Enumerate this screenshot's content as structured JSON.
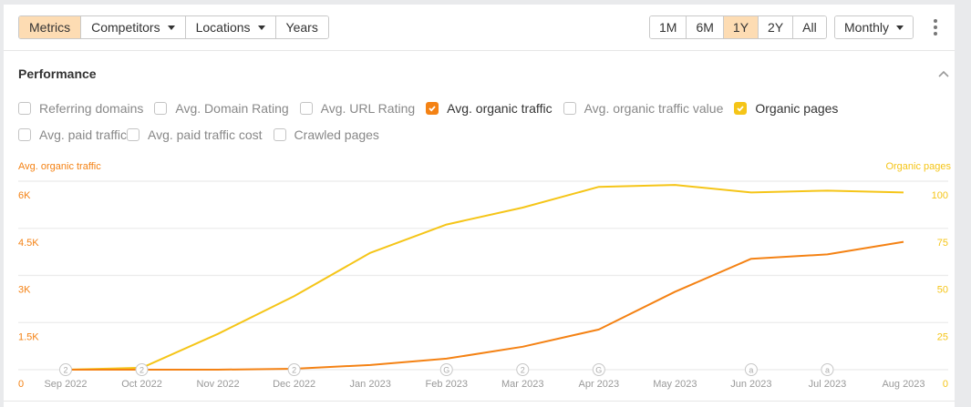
{
  "toolbar": {
    "left_buttons": [
      {
        "label": "Metrics",
        "active": true,
        "dropdown": false
      },
      {
        "label": "Competitors",
        "active": false,
        "dropdown": true
      },
      {
        "label": "Locations",
        "active": false,
        "dropdown": true
      },
      {
        "label": "Years",
        "active": false,
        "dropdown": false
      }
    ],
    "range_buttons": [
      {
        "label": "1M",
        "active": false
      },
      {
        "label": "6M",
        "active": false
      },
      {
        "label": "1Y",
        "active": true
      },
      {
        "label": "2Y",
        "active": false
      },
      {
        "label": "All",
        "active": false
      }
    ],
    "interval": {
      "label": "Monthly"
    },
    "more_icon": "kebab-menu-icon"
  },
  "section": {
    "title": "Performance",
    "collapse_icon": "chevron-up-icon"
  },
  "metrics": [
    {
      "label": "Referring domains",
      "checked": false,
      "color": ""
    },
    {
      "label": "Avg. Domain Rating",
      "checked": false,
      "color": ""
    },
    {
      "label": "Avg. URL Rating",
      "checked": false,
      "color": ""
    },
    {
      "label": "Avg. organic traffic",
      "checked": true,
      "color": "#f48214"
    },
    {
      "label": "Avg. organic traffic value",
      "checked": false,
      "color": ""
    },
    {
      "label": "Organic pages",
      "checked": true,
      "color": "#f5c518"
    },
    {
      "label": "Avg. paid traffic",
      "checked": false,
      "color": ""
    },
    {
      "label": "Avg. paid traffic cost",
      "checked": false,
      "color": ""
    },
    {
      "label": "Crawled pages",
      "checked": false,
      "color": ""
    }
  ],
  "colors": {
    "orange": "#f48214",
    "yellow": "#f5c518",
    "grid": "#ebebeb",
    "tick_text": "#999999",
    "active_button": "#fddcb3"
  },
  "chart_data": {
    "type": "line",
    "title": "Performance",
    "x": [
      "Sep 2022",
      "Oct 2022",
      "Nov 2022",
      "Dec 2022",
      "Jan 2023",
      "Feb 2023",
      "Mar 2023",
      "Apr 2023",
      "May 2023",
      "Jun 2023",
      "Jul 2023",
      "Aug 2023"
    ],
    "series": [
      {
        "name": "Avg. organic traffic",
        "axis": "left",
        "color": "#f48214",
        "values": [
          0,
          0,
          0,
          30,
          150,
          350,
          730,
          1280,
          2480,
          3530,
          3670,
          4070
        ]
      },
      {
        "name": "Organic pages",
        "axis": "right",
        "color": "#f5c518",
        "values": [
          0,
          1,
          19,
          39,
          62,
          77,
          86,
          97,
          98,
          94,
          95,
          94
        ]
      }
    ],
    "left_axis": {
      "label": "Avg. organic traffic",
      "ticks": [
        "0",
        "1.5K",
        "3K",
        "4.5K",
        "6K"
      ],
      "ylim": [
        0,
        6000
      ]
    },
    "right_axis": {
      "label": "Organic pages",
      "ticks": [
        "0",
        "25",
        "50",
        "75",
        "100"
      ],
      "ylim": [
        0,
        100
      ]
    },
    "annotations": [
      {
        "x": "Sep 2022",
        "label": "2"
      },
      {
        "x": "Oct 2022",
        "label": "2"
      },
      {
        "x": "Dec 2022",
        "label": "2"
      },
      {
        "x": "Feb 2023",
        "label": "G"
      },
      {
        "x": "Mar 2023",
        "label": "2"
      },
      {
        "x": "Apr 2023",
        "label": "G"
      },
      {
        "x": "Jun 2023",
        "label": "a"
      },
      {
        "x": "Jul 2023",
        "label": "a"
      }
    ],
    "grid": true,
    "legend_position": "top (checkbox metric selector)"
  }
}
